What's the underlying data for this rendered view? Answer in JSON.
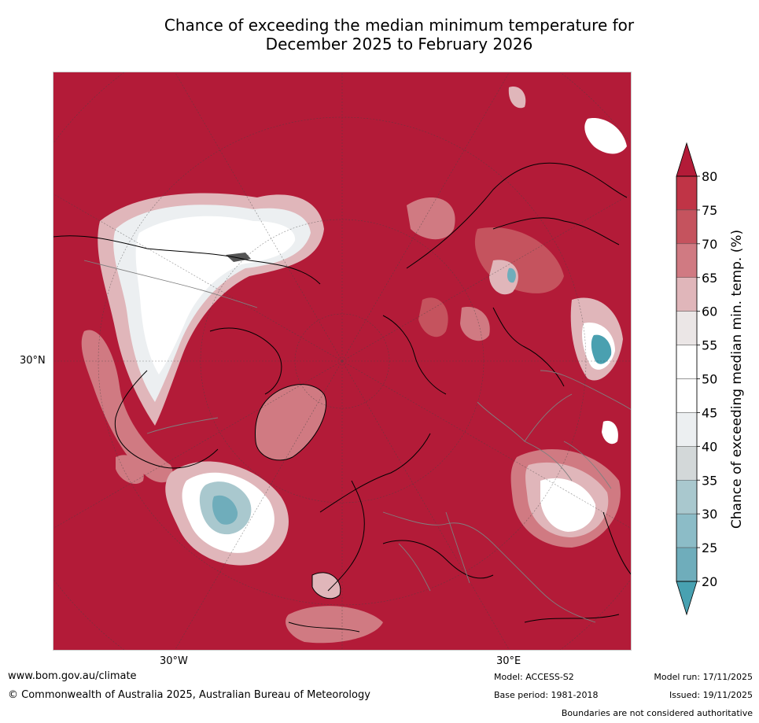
{
  "title": {
    "line1": "Chance of exceeding the median minimum temperature for",
    "line2": "December 2025 to February 2026"
  },
  "map": {
    "projection": "north-polar-stereographic",
    "lat_labels": [
      "30°N"
    ],
    "lon_labels": [
      "30°W",
      "30°E"
    ],
    "colors": {
      "hot": "#b31b38",
      "white": "#ffffff",
      "blue": "#4aa0b0",
      "land_outline": "#000000",
      "borders": "#808080"
    }
  },
  "colorbar": {
    "label": "Chance of exceeding median min. temp. (%)",
    "ticks": [
      "80",
      "75",
      "70",
      "65",
      "60",
      "55",
      "50",
      "45",
      "40",
      "35",
      "30",
      "25",
      "20"
    ],
    "bands": [
      "#c03446",
      "#c5535e",
      "#d07a82",
      "#e0b6ba",
      "#ebe6e6",
      "#ffffff",
      "#ffffff",
      "#eceff1",
      "#d3d8d9",
      "#a9c8ce",
      "#8cbcc7",
      "#6fadbb"
    ],
    "over_color": "#b31b38",
    "under_color": "#48a1b1"
  },
  "footer": {
    "url": "www.bom.gov.au/climate",
    "copyright": "© Commonwealth of Australia 2025, Australian Bureau of Meteorology",
    "model": "Model: ACCESS-S2",
    "base_period": "Base period: 1981-2018",
    "model_run": "Model run: 17/11/2025",
    "issued": "Issued: 19/11/2025",
    "disclaimer": "Boundaries are not considered authoritative"
  }
}
